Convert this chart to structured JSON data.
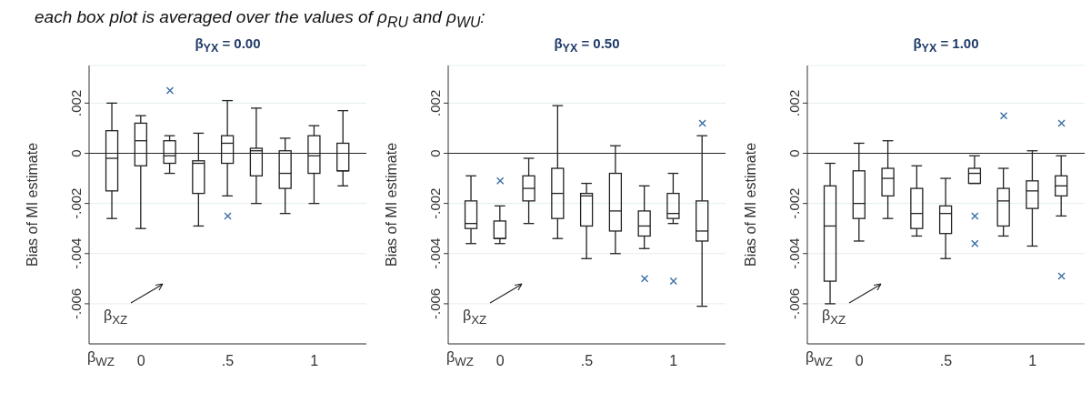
{
  "chart_data": [
    {
      "type": "box",
      "title": "β$_{YX}$ = 0.00",
      "subtitle": "each box plot is averaged over the values of ρ$_{RU}$ and ρ$_{WU}$:",
      "xlabel": "β$_{WZ}$",
      "ylabel": "Bias of MI estimate",
      "annotations": [
        "β$_{XZ}$"
      ],
      "categories": [
        null,
        "0",
        null,
        null,
        ".5",
        null,
        null,
        "1",
        null
      ],
      "boxes": [
        {
          "low": -0.0026,
          "q1": -0.0015,
          "median": -0.0002,
          "q3": 0.0009,
          "high": 0.002
        },
        {
          "low": -0.003,
          "q1": -0.0005,
          "median": 0.0005,
          "q3": 0.0012,
          "high": 0.0015
        },
        {
          "low": -0.0008,
          "q1": -0.0004,
          "median": -0.0001,
          "q3": 0.0005,
          "high": 0.0007,
          "outliers": [
            0.0025
          ]
        },
        {
          "low": -0.0029,
          "q1": -0.0016,
          "median": -0.0004,
          "q3": -0.0003,
          "high": 0.0008
        },
        {
          "low": -0.0017,
          "q1": -0.0004,
          "median": 0.0004,
          "q3": 0.0007,
          "high": 0.0021,
          "outliers": [
            -0.0025
          ]
        },
        {
          "low": -0.002,
          "q1": -0.0009,
          "median": 0.0001,
          "q3": 0.0002,
          "high": 0.0018
        },
        {
          "low": -0.0024,
          "q1": -0.0014,
          "median": -0.0008,
          "q3": 0.0001,
          "high": 0.0006
        },
        {
          "low": -0.002,
          "q1": -0.0008,
          "median": -0.0001,
          "q3": 0.0007,
          "high": 0.0011
        },
        {
          "low": -0.0013,
          "q1": -0.0007,
          "median": -0.0007,
          "q3": 0.0004,
          "high": 0.0017
        }
      ],
      "ylim": [
        -0.0076,
        0.0035
      ],
      "yticks": [
        {
          "value": 0.002,
          "label": ".002"
        },
        {
          "value": 0,
          "label": "0"
        },
        {
          "value": -0.002,
          "label": "-.002"
        },
        {
          "value": -0.004,
          "label": "-.004"
        },
        {
          "value": -0.006,
          "label": "-.006"
        }
      ],
      "grid": "y",
      "marker": "cross",
      "ref_lines": [
        {
          "axis": "y",
          "value": 0
        }
      ]
    },
    {
      "type": "box",
      "title": "β$_{YX}$ = 0.50",
      "xlabel": "β$_{WZ}$",
      "ylabel": "Bias of MI estimate",
      "annotations": [
        "β$_{XZ}$"
      ],
      "categories": [
        null,
        "0",
        null,
        null,
        ".5",
        null,
        null,
        "1",
        null
      ],
      "boxes": [
        {
          "low": -0.0036,
          "q1": -0.003,
          "median": -0.0028,
          "q3": -0.0019,
          "high": -0.0009
        },
        {
          "low": -0.0036,
          "q1": -0.0034,
          "median": -0.0034,
          "q3": -0.0027,
          "high": -0.0021,
          "outliers": [
            -0.0011
          ]
        },
        {
          "low": -0.0028,
          "q1": -0.0019,
          "median": -0.0014,
          "q3": -0.0009,
          "high": -0.0002
        },
        {
          "low": -0.0034,
          "q1": -0.0026,
          "median": -0.0016,
          "q3": -0.0006,
          "high": 0.0019
        },
        {
          "low": -0.0042,
          "q1": -0.0029,
          "median": -0.0017,
          "q3": -0.0016,
          "high": -0.0012
        },
        {
          "low": -0.004,
          "q1": -0.0031,
          "median": -0.0023,
          "q3": -0.0008,
          "high": 0.0003
        },
        {
          "low": -0.0038,
          "q1": -0.0033,
          "median": -0.0029,
          "q3": -0.0023,
          "high": -0.0013,
          "outliers": [
            -0.005
          ]
        },
        {
          "low": -0.0028,
          "q1": -0.0026,
          "median": -0.0024,
          "q3": -0.0016,
          "high": -0.0008,
          "outliers": [
            -0.0051
          ]
        },
        {
          "low": -0.0061,
          "q1": -0.0035,
          "median": -0.0031,
          "q3": -0.0019,
          "high": 0.0007,
          "outliers": [
            0.0012
          ]
        }
      ],
      "ylim": [
        -0.0076,
        0.0035
      ],
      "yticks": [
        {
          "value": 0.002,
          "label": ".002"
        },
        {
          "value": 0,
          "label": "0"
        },
        {
          "value": -0.002,
          "label": "-.002"
        },
        {
          "value": -0.004,
          "label": "-.004"
        },
        {
          "value": -0.006,
          "label": "-.006"
        }
      ],
      "grid": "y",
      "marker": "cross",
      "ref_lines": [
        {
          "axis": "y",
          "value": 0
        }
      ]
    },
    {
      "type": "box",
      "title": "β$_{YX}$ = 1.00",
      "xlabel": "β$_{WZ}$",
      "ylabel": "Bias of MI estimate",
      "annotations": [
        "β$_{XZ}$"
      ],
      "categories": [
        null,
        "0",
        null,
        null,
        ".5",
        null,
        null,
        "1",
        null
      ],
      "boxes": [
        {
          "low": -0.006,
          "q1": -0.0051,
          "median": -0.0029,
          "q3": -0.0013,
          "high": -0.0004
        },
        {
          "low": -0.0035,
          "q1": -0.0026,
          "median": -0.002,
          "q3": -0.0007,
          "high": 0.0004
        },
        {
          "low": -0.0026,
          "q1": -0.0017,
          "median": -0.001,
          "q3": -0.0006,
          "high": 0.0005
        },
        {
          "low": -0.0033,
          "q1": -0.003,
          "median": -0.0024,
          "q3": -0.0014,
          "high": -0.0005
        },
        {
          "low": -0.0042,
          "q1": -0.0032,
          "median": -0.0024,
          "q3": -0.0021,
          "high": -0.001
        },
        {
          "low": -0.0012,
          "q1": -0.0012,
          "median": -0.0008,
          "q3": -0.0006,
          "high": -0.0001,
          "outliers": [
            -0.0025,
            -0.0036
          ]
        },
        {
          "low": -0.0033,
          "q1": -0.0029,
          "median": -0.0019,
          "q3": -0.0014,
          "high": -0.0006,
          "outliers": [
            0.0015
          ]
        },
        {
          "low": -0.0037,
          "q1": -0.0022,
          "median": -0.0015,
          "q3": -0.0011,
          "high": 0.0001
        },
        {
          "low": -0.0025,
          "q1": -0.0017,
          "median": -0.0013,
          "q3": -0.0009,
          "high": -0.0001,
          "outliers": [
            0.0012,
            -0.0049
          ]
        }
      ],
      "ylim": [
        -0.0076,
        0.0035
      ],
      "yticks": [
        {
          "value": 0.002,
          "label": ".002"
        },
        {
          "value": 0,
          "label": "0"
        },
        {
          "value": -0.002,
          "label": "-.002"
        },
        {
          "value": -0.004,
          "label": "-.004"
        },
        {
          "value": -0.006,
          "label": "-.006"
        }
      ],
      "grid": "y",
      "marker": "cross",
      "ref_lines": [
        {
          "axis": "y",
          "value": 0
        }
      ]
    }
  ]
}
